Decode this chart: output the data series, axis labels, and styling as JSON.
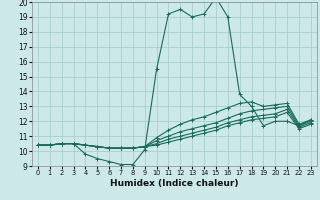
{
  "xlabel": "Humidex (Indice chaleur)",
  "bg_color": "#cce8e8",
  "grid_color": "#aacece",
  "line_color": "#1a6b5a",
  "xlim": [
    -0.5,
    23.5
  ],
  "ylim": [
    9,
    20
  ],
  "xticks": [
    0,
    1,
    2,
    3,
    4,
    5,
    6,
    7,
    8,
    9,
    10,
    11,
    12,
    13,
    14,
    15,
    16,
    17,
    18,
    19,
    20,
    21,
    22,
    23
  ],
  "yticks": [
    9,
    10,
    11,
    12,
    13,
    14,
    15,
    16,
    17,
    18,
    19,
    20
  ],
  "series": [
    {
      "x": [
        0,
        1,
        2,
        3,
        4,
        5,
        6,
        7,
        8,
        9,
        10,
        11,
        12,
        13,
        14,
        15,
        16,
        17,
        18,
        19,
        20,
        21,
        22,
        23
      ],
      "y": [
        10.4,
        10.4,
        10.5,
        10.5,
        9.8,
        9.5,
        9.3,
        9.1,
        9.1,
        10.1,
        15.5,
        19.2,
        19.5,
        19.0,
        19.2,
        20.3,
        19.0,
        13.8,
        13.0,
        11.7,
        12.0,
        12.0,
        11.7,
        12.1
      ]
    },
    {
      "x": [
        0,
        1,
        2,
        3,
        4,
        5,
        6,
        7,
        8,
        9,
        10,
        11,
        12,
        13,
        14,
        15,
        16,
        17,
        18,
        19,
        20,
        21,
        22,
        23
      ],
      "y": [
        10.4,
        10.4,
        10.5,
        10.5,
        10.4,
        10.3,
        10.2,
        10.2,
        10.2,
        10.3,
        10.9,
        11.4,
        11.8,
        12.1,
        12.3,
        12.6,
        12.9,
        13.2,
        13.3,
        13.0,
        13.1,
        13.2,
        11.8,
        12.1
      ]
    },
    {
      "x": [
        0,
        1,
        2,
        3,
        4,
        5,
        6,
        7,
        8,
        9,
        10,
        11,
        12,
        13,
        14,
        15,
        16,
        17,
        18,
        19,
        20,
        21,
        22,
        23
      ],
      "y": [
        10.4,
        10.4,
        10.5,
        10.5,
        10.4,
        10.3,
        10.2,
        10.2,
        10.2,
        10.3,
        10.7,
        11.0,
        11.3,
        11.5,
        11.7,
        11.9,
        12.2,
        12.5,
        12.7,
        12.8,
        12.9,
        13.0,
        11.7,
        12.0
      ]
    },
    {
      "x": [
        0,
        1,
        2,
        3,
        4,
        5,
        6,
        7,
        8,
        9,
        10,
        11,
        12,
        13,
        14,
        15,
        16,
        17,
        18,
        19,
        20,
        21,
        22,
        23
      ],
      "y": [
        10.4,
        10.4,
        10.5,
        10.5,
        10.4,
        10.3,
        10.2,
        10.2,
        10.2,
        10.3,
        10.5,
        10.8,
        11.0,
        11.2,
        11.4,
        11.6,
        11.9,
        12.1,
        12.3,
        12.4,
        12.5,
        12.8,
        11.6,
        11.9
      ]
    },
    {
      "x": [
        0,
        1,
        2,
        3,
        4,
        5,
        6,
        7,
        8,
        9,
        10,
        11,
        12,
        13,
        14,
        15,
        16,
        17,
        18,
        19,
        20,
        21,
        22,
        23
      ],
      "y": [
        10.4,
        10.4,
        10.5,
        10.5,
        10.4,
        10.3,
        10.2,
        10.2,
        10.2,
        10.3,
        10.4,
        10.6,
        10.8,
        11.0,
        11.2,
        11.4,
        11.7,
        11.9,
        12.1,
        12.2,
        12.3,
        12.6,
        11.5,
        11.8
      ]
    }
  ]
}
